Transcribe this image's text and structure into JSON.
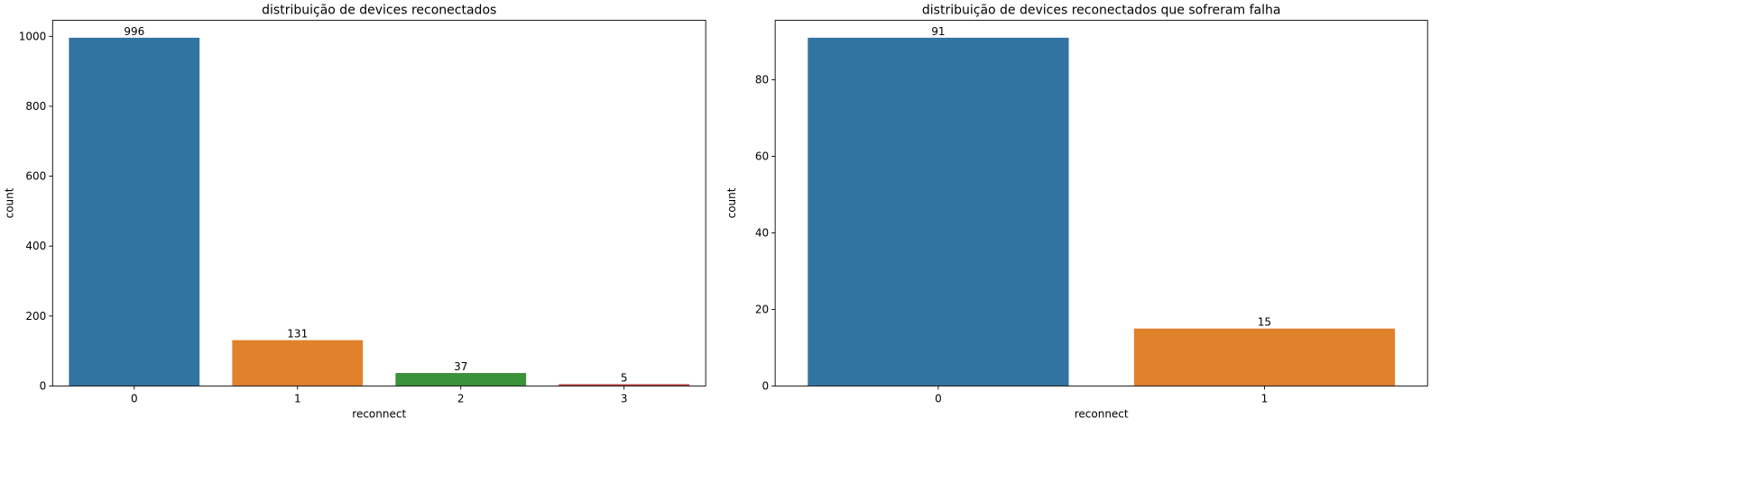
{
  "chart_data": [
    {
      "type": "bar",
      "title": "distribuição de devices reconectados",
      "xlabel": "reconnect",
      "ylabel": "count",
      "categories": [
        "0",
        "1",
        "2",
        "3"
      ],
      "values": [
        996,
        131,
        37,
        5
      ],
      "data_labels": [
        "996",
        "131",
        "37",
        "5"
      ],
      "colors": [
        "#3274a1",
        "#e1812c",
        "#3a923a",
        "#c03d3e"
      ],
      "ylim": [
        0,
        1045.8
      ],
      "yticks": [
        0,
        200,
        400,
        600,
        800,
        1000
      ],
      "ytick_labels": [
        "0",
        "200",
        "400",
        "600",
        "800",
        "1000"
      ],
      "grid": false,
      "legend": "none"
    },
    {
      "type": "bar",
      "title": "distribuição de devices reconectados que sofreram falha",
      "xlabel": "reconnect",
      "ylabel": "count",
      "categories": [
        "0",
        "1"
      ],
      "values": [
        91,
        15
      ],
      "data_labels": [
        "91",
        "15"
      ],
      "colors": [
        "#3274a1",
        "#e1812c"
      ],
      "ylim": [
        0,
        95.55
      ],
      "yticks": [
        0,
        20,
        40,
        60,
        80
      ],
      "ytick_labels": [
        "0",
        "20",
        "40",
        "60",
        "80"
      ],
      "grid": false,
      "legend": "none"
    }
  ]
}
